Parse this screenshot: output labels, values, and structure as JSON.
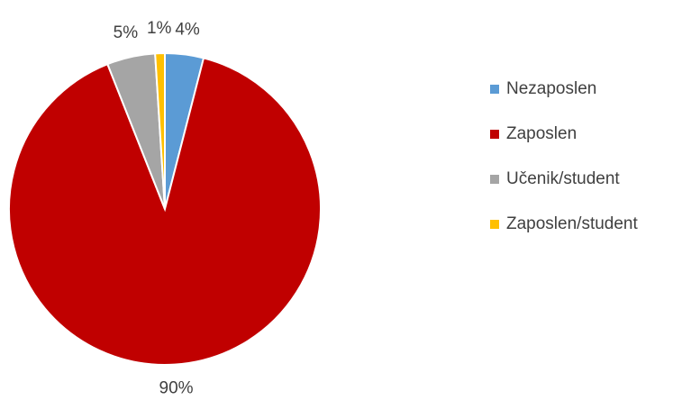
{
  "chart_data": {
    "type": "pie",
    "categories": [
      "Nezaposlen",
      "Zaposlen",
      "Učenik/student",
      "Zaposlen/student"
    ],
    "values": [
      4,
      90,
      5,
      1
    ],
    "value_labels": [
      "4%",
      "90%",
      "5%",
      "1%"
    ],
    "colors": [
      "#5b9bd5",
      "#c00000",
      "#a5a5a5",
      "#ffc000"
    ],
    "legend": "right"
  }
}
